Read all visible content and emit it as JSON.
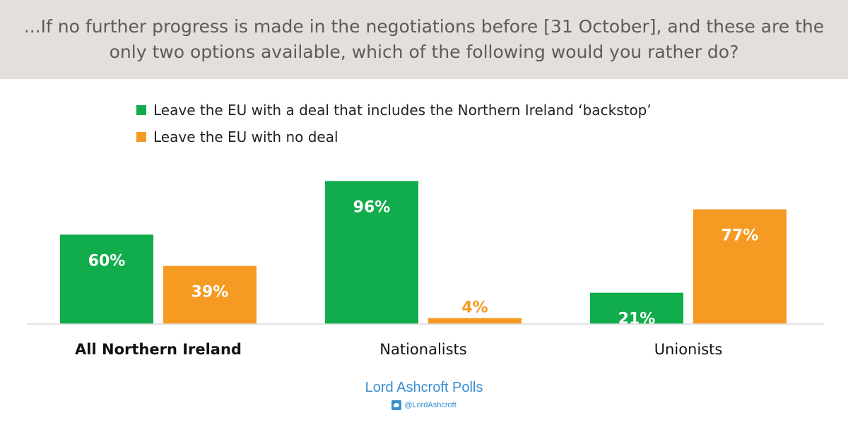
{
  "header": {
    "title": "...If no further progress is made in the negotiations before [31 October], and these are the only two options available, which of the following would you rather do?"
  },
  "colors": {
    "header_bg": "#e3dfdc",
    "series_deal": "#11ac4b",
    "series_no_deal": "#f59a23",
    "axis": "#d9d9d9",
    "brand": "#3a8fd0"
  },
  "footer": {
    "brand": "Lord Ashcroft Polls",
    "handle": "@LordAshcroft",
    "icon": "twitter-bird-icon"
  },
  "chart_data": {
    "type": "bar",
    "categories": [
      "All Northern Ireland",
      "Nationalists",
      "Unionists"
    ],
    "series": [
      {
        "name": "Leave the EU with a deal that includes the Northern Ireland ‘backstop’",
        "values": [
          60,
          96,
          21
        ],
        "labels": [
          "60%",
          "96%",
          "21%"
        ]
      },
      {
        "name": "Leave the EU with no deal",
        "values": [
          39,
          4,
          77
        ],
        "labels": [
          "39%",
          "4%",
          "77%"
        ]
      }
    ],
    "ylim": [
      0,
      100
    ],
    "legend_position": "top-left",
    "grid": false
  }
}
